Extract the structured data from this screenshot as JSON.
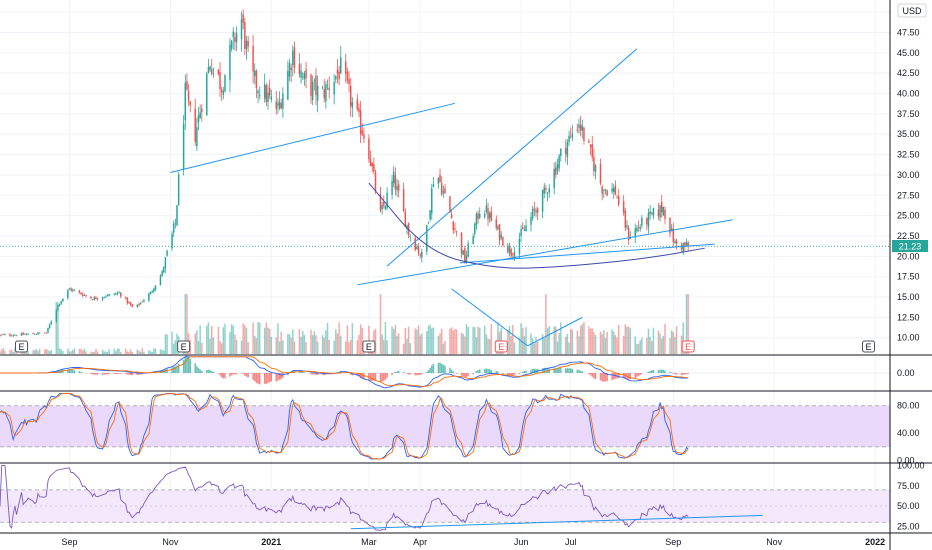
{
  "currency": "USD",
  "last_price": {
    "label": "21.23",
    "value": 21.23,
    "color": "#26a69a"
  },
  "colors": {
    "up": "#26a69a",
    "down": "#ef5350",
    "trendline": "#2196f3",
    "macd": "#2962ff",
    "signal": "#ff6d00",
    "stoch_k": "#2962ff",
    "stoch_d": "#ff6d00",
    "rsi": "#7e57c2",
    "band": "#e1bee7"
  },
  "earnings_marker": "E",
  "x_axis": {
    "ticks": [
      "Sep",
      "Nov",
      "2021",
      "Mar",
      "Apr",
      "Jun",
      "Jul",
      "Sep",
      "Nov",
      "2022"
    ]
  },
  "chart_data": [
    {
      "type": "candlestick",
      "panel": "price",
      "y_ticks": [
        "50.00",
        "47.50",
        "45.00",
        "42.50",
        "40.00",
        "37.50",
        "35.00",
        "32.50",
        "30.00",
        "27.50",
        "25.00",
        "22.50",
        "20.00",
        "17.50",
        "15.00",
        "12.50",
        "10.00"
      ],
      "ylim": [
        8,
        51
      ],
      "x_range": [
        "2020-07-21",
        "2022-01-10"
      ],
      "price_path": [
        [
          "2020-07-21",
          10.3
        ],
        [
          "2020-08-05",
          10.4
        ],
        [
          "2020-08-18",
          10.6
        ],
        [
          "2020-08-25",
          14.0
        ],
        [
          "2020-09-01",
          16.0
        ],
        [
          "2020-09-15",
          14.8
        ],
        [
          "2020-10-01",
          15.5
        ],
        [
          "2020-10-10",
          13.5
        ],
        [
          "2020-10-20",
          15.5
        ],
        [
          "2020-10-27",
          18.0
        ],
        [
          "2020-11-04",
          24.0
        ],
        [
          "2020-11-10",
          40.0
        ],
        [
          "2020-11-16",
          35.0
        ],
        [
          "2020-11-25",
          44.0
        ],
        [
          "2020-12-02",
          41.0
        ],
        [
          "2020-12-10",
          47.0
        ],
        [
          "2020-12-14",
          49.0
        ],
        [
          "2020-12-20",
          42.0
        ],
        [
          "2021-01-05",
          38.0
        ],
        [
          "2021-01-14",
          45.0
        ],
        [
          "2021-01-22",
          41.0
        ],
        [
          "2021-02-01",
          40.0
        ],
        [
          "2021-02-12",
          43.0
        ],
        [
          "2021-02-20",
          38.0
        ],
        [
          "2021-02-28",
          34.0
        ],
        [
          "2021-03-08",
          25.0
        ],
        [
          "2021-03-16",
          29.5
        ],
        [
          "2021-03-25",
          23.0
        ],
        [
          "2021-04-02",
          20.0
        ],
        [
          "2021-04-06",
          25.0
        ],
        [
          "2021-04-10",
          31.0
        ],
        [
          "2021-04-18",
          26.0
        ],
        [
          "2021-04-28",
          19.5
        ],
        [
          "2021-05-08",
          26.5
        ],
        [
          "2021-05-18",
          23.0
        ],
        [
          "2021-05-26",
          20.5
        ],
        [
          "2021-06-05",
          24.0
        ],
        [
          "2021-06-16",
          28.0
        ],
        [
          "2021-06-26",
          33.0
        ],
        [
          "2021-07-06",
          36.5
        ],
        [
          "2021-07-12",
          33.0
        ],
        [
          "2021-07-20",
          28.5
        ],
        [
          "2021-07-28",
          28.0
        ],
        [
          "2021-08-05",
          22.5
        ],
        [
          "2021-08-16",
          24.5
        ],
        [
          "2021-08-26",
          26.0
        ],
        [
          "2021-09-02",
          21.5
        ],
        [
          "2021-09-10",
          21.23
        ]
      ],
      "earnings_dates": [
        "2020-08-03",
        "2020-11-09",
        "2021-03-01",
        "2021-05-20",
        "2021-09-10",
        "2021-12-28"
      ],
      "trendlines": [
        {
          "from": [
            "2020-11-01",
            30.3
          ],
          "to": [
            "2021-04-22",
            38.8
          ]
        },
        {
          "from": [
            "2021-03-12",
            18.8
          ],
          "to": [
            "2021-08-10",
            45.5
          ]
        },
        {
          "from": [
            "2021-02-22",
            16.5
          ],
          "to": [
            "2021-10-07",
            24.5
          ]
        },
        {
          "from": [
            "2021-04-25",
            19.2
          ],
          "to": [
            "2021-09-26",
            21.5
          ]
        }
      ],
      "curve": [
        [
          "2021-03-01",
          29.0
        ],
        [
          "2021-04-05",
          20.5
        ],
        [
          "2021-05-15",
          18.5
        ],
        [
          "2021-06-20",
          18.6
        ],
        [
          "2021-08-15",
          19.7
        ],
        [
          "2021-09-20",
          21.0
        ]
      ],
      "volume_pattern": [
        {
          "from": [
            "2021-04-20",
            16.0
          ],
          "to": [
            "2021-06-05",
            9.0
          ]
        },
        {
          "from": [
            "2021-06-05",
            9.0
          ],
          "to": [
            "2021-07-08",
            12.5
          ]
        }
      ]
    },
    {
      "type": "line",
      "panel": "macd",
      "name": "",
      "y_ticks": [
        "0.00"
      ],
      "ylim": [
        -2.2,
        2.2
      ]
    },
    {
      "type": "line",
      "panel": "stochastic",
      "name": "",
      "y_ticks": [
        "80.00",
        "40.00",
        "0.00"
      ],
      "ylim": [
        -2,
        100
      ],
      "band": [
        20,
        80
      ]
    },
    {
      "type": "line",
      "panel": "rsi",
      "name": "",
      "y_ticks": [
        "100.00",
        "75.00",
        "50.00",
        "25.00"
      ],
      "ylim": [
        18,
        102
      ],
      "band": [
        30,
        70
      ],
      "trendline": {
        "from": [
          "2021-02-18",
          22.0
        ],
        "to": [
          "2021-10-25",
          38.5
        ]
      }
    }
  ]
}
